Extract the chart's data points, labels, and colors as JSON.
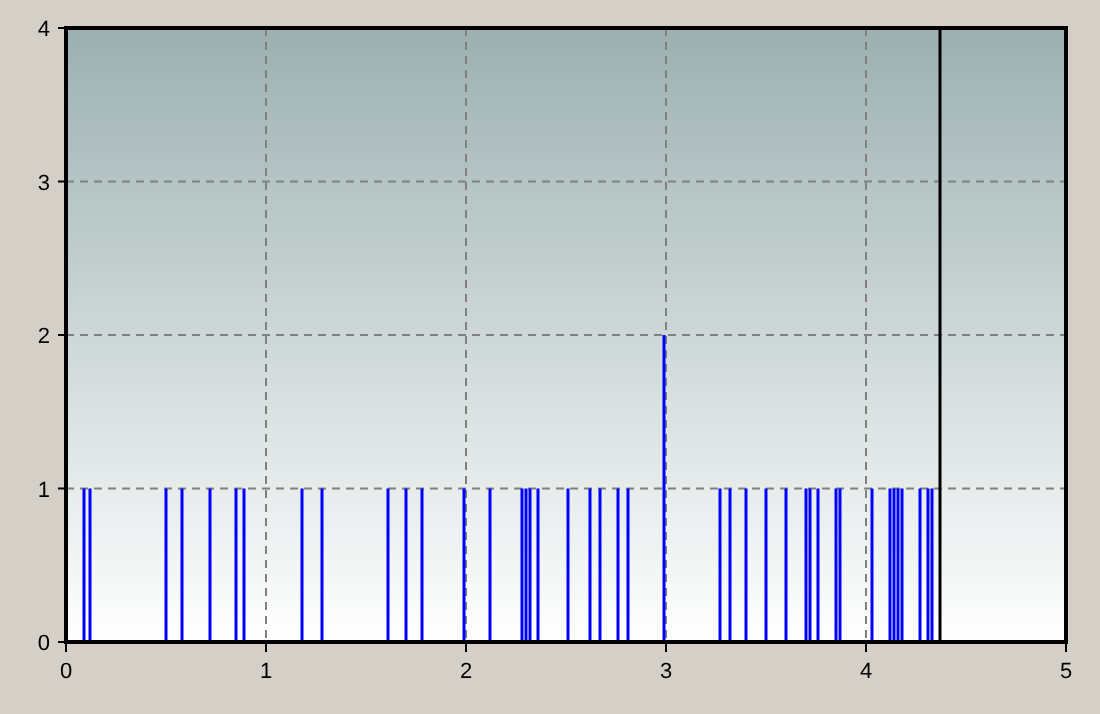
{
  "chart_data": {
    "type": "bar",
    "x": [
      0.09,
      0.12,
      0.5,
      0.58,
      0.72,
      0.85,
      0.89,
      1.18,
      1.28,
      1.61,
      1.7,
      1.78,
      1.99,
      2.12,
      2.28,
      2.3,
      2.32,
      2.36,
      2.51,
      2.62,
      2.67,
      2.76,
      2.81,
      2.99,
      3.27,
      3.32,
      3.4,
      3.5,
      3.6,
      3.7,
      3.72,
      3.76,
      3.85,
      3.87,
      4.03,
      4.12,
      4.14,
      4.16,
      4.18,
      4.27,
      4.31,
      4.33
    ],
    "values": [
      1,
      1,
      1,
      1,
      1,
      1,
      1,
      1,
      1,
      1,
      1,
      1,
      1,
      1,
      1,
      1,
      1,
      1,
      1,
      1,
      1,
      1,
      1,
      2,
      1,
      1,
      1,
      1,
      1,
      1,
      1,
      1,
      1,
      1,
      1,
      1,
      1,
      1,
      1,
      1,
      1,
      1
    ],
    "color": "#0000ff",
    "xlim": [
      0,
      5
    ],
    "ylim": [
      0,
      4
    ],
    "xticks": [
      0,
      1,
      2,
      3,
      4,
      5
    ],
    "yticks": [
      0,
      1,
      2,
      3,
      4
    ],
    "grid": true,
    "ref_lines": [
      {
        "axis": "x",
        "value": 4.37,
        "color": "#000000"
      }
    ]
  }
}
